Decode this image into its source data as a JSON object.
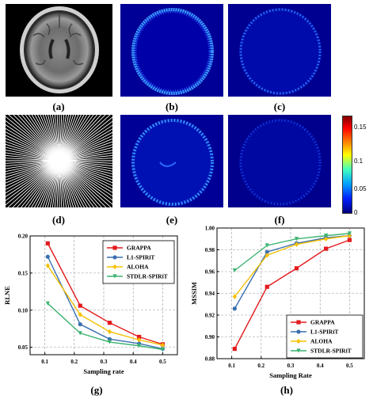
{
  "captions": [
    "(a)",
    "(b)",
    "(c)",
    "(d)",
    "(e)",
    "(f)",
    "(g)",
    "(h)"
  ],
  "colorbar": {
    "ticks": [
      "0.15",
      "0.1",
      "0.05",
      "0"
    ]
  },
  "chart_data": [
    {
      "type": "line",
      "xlabel": "Sampling rate",
      "ylabel": "RLNE",
      "xlim": [
        0.05,
        0.55
      ],
      "ylim": [
        0.04,
        0.2
      ],
      "xticks": [
        "0.1",
        "0.2",
        "0.3",
        "0.4",
        "0.5"
      ],
      "yticks": [
        "0.05",
        "0.10",
        "0.15",
        "0.20"
      ],
      "x": [
        0.11,
        0.22,
        0.32,
        0.42,
        0.5
      ],
      "legend_position": "top-right",
      "series": [
        {
          "name": "GRAPPA",
          "color": "#e41a1c",
          "values": [
            0.19,
            0.106,
            0.083,
            0.064,
            0.054
          ]
        },
        {
          "name": "L1-SPIRiT",
          "color": "#3a6fb0",
          "values": [
            0.172,
            0.081,
            0.061,
            0.055,
            0.048
          ]
        },
        {
          "name": "ALOHA",
          "color": "#f5c000",
          "values": [
            0.16,
            0.094,
            0.071,
            0.06,
            0.053
          ]
        },
        {
          "name": "STDLR-SPIRiT",
          "color": "#3cb371",
          "values": [
            0.109,
            0.069,
            0.057,
            0.052,
            0.047
          ]
        }
      ]
    },
    {
      "type": "line",
      "xlabel": "Sampling Rate",
      "ylabel": "MSSIM",
      "xlim": [
        0.05,
        0.55
      ],
      "ylim": [
        0.88,
        1.0
      ],
      "xticks": [
        "0.1",
        "0.2",
        "0.3",
        "0.4",
        "0.5"
      ],
      "yticks": [
        "0.88",
        "0.90",
        "0.92",
        "0.94",
        "0.96",
        "0.98",
        "1.00"
      ],
      "x": [
        0.11,
        0.22,
        0.32,
        0.42,
        0.5
      ],
      "legend_position": "bottom-right",
      "series": [
        {
          "name": "GRAPPA",
          "color": "#e41a1c",
          "values": [
            0.889,
            0.946,
            0.963,
            0.981,
            0.989
          ]
        },
        {
          "name": "L1-SPIRiT",
          "color": "#3a6fb0",
          "values": [
            0.926,
            0.978,
            0.986,
            0.991,
            0.993
          ]
        },
        {
          "name": "ALOHA",
          "color": "#f5c000",
          "values": [
            0.937,
            0.975,
            0.985,
            0.99,
            0.993
          ]
        },
        {
          "name": "STDLR-SPIRiT",
          "color": "#3cb371",
          "values": [
            0.961,
            0.984,
            0.99,
            0.993,
            0.995
          ]
        }
      ]
    }
  ]
}
